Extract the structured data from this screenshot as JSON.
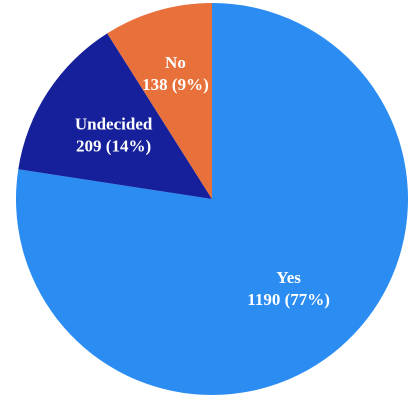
{
  "chart_data": {
    "type": "pie",
    "start_angle_deg": 0,
    "direction": "clockwise",
    "slices": [
      {
        "label": "Yes",
        "value": 1190,
        "display": "1190 (77%)",
        "color": "#2b8cf2"
      },
      {
        "label": "Undecided",
        "value": 209,
        "display": "209 (14%)",
        "color": "#15209a"
      },
      {
        "label": "No",
        "value": 138,
        "display": "138 (9%)",
        "color": "#e8703a"
      }
    ]
  }
}
